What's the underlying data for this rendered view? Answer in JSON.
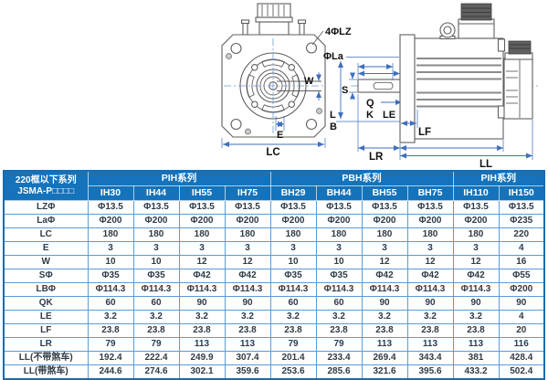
{
  "drawing": {
    "labels": {
      "four_lz": "4ΦLZ",
      "la": "ΦLa",
      "w": "W",
      "e": "E",
      "lc": "LC",
      "s": "S",
      "q": "Q",
      "k": "K",
      "l": "L",
      "b": "B",
      "le": "LE",
      "lf": "LF",
      "lr": "LR",
      "ll": "LL"
    },
    "colors": {
      "outline": "#5f5f5f",
      "dimension": "#3f6fbe",
      "connector_dark": "#606060"
    }
  },
  "table": {
    "corner_header": {
      "line1": "220框以下系列",
      "line2": "JSMA-P□□□□"
    },
    "groups": [
      {
        "label": "PIH系列",
        "span": 4
      },
      {
        "label": "PBH系列",
        "span": 4
      },
      {
        "label": "PIH系列",
        "span": 2
      }
    ],
    "models": [
      "IH30",
      "IH44",
      "IH55",
      "IH75",
      "BH29",
      "BH44",
      "BH55",
      "BH75",
      "IH110",
      "IH150"
    ],
    "rows": [
      {
        "label": "LZΦ",
        "values": [
          "Φ13.5",
          "Φ13.5",
          "Φ13.5",
          "Φ13.5",
          "Φ13.5",
          "Φ13.5",
          "Φ13.5",
          "Φ13.5",
          "Φ13.5",
          "Φ13.5"
        ]
      },
      {
        "label": "LaΦ",
        "values": [
          "Φ200",
          "Φ200",
          "Φ200",
          "Φ200",
          "Φ200",
          "Φ200",
          "Φ200",
          "Φ200",
          "Φ200",
          "Φ235"
        ]
      },
      {
        "label": "LC",
        "values": [
          "180",
          "180",
          "180",
          "180",
          "180",
          "180",
          "180",
          "180",
          "180",
          "220"
        ]
      },
      {
        "label": "E",
        "values": [
          "3",
          "3",
          "3",
          "3",
          "3",
          "3",
          "3",
          "3",
          "3",
          "4"
        ]
      },
      {
        "label": "W",
        "values": [
          "10",
          "10",
          "12",
          "12",
          "10",
          "10",
          "12",
          "12",
          "12",
          "16"
        ]
      },
      {
        "label": "SΦ",
        "values": [
          "Φ35",
          "Φ35",
          "Φ42",
          "Φ42",
          "Φ35",
          "Φ35",
          "Φ42",
          "Φ42",
          "Φ42",
          "Φ55"
        ]
      },
      {
        "label": "LBΦ",
        "values": [
          "Φ114.3",
          "Φ114.3",
          "Φ114.3",
          "Φ114.3",
          "Φ114.3",
          "Φ114.3",
          "Φ114.3",
          "Φ114.3",
          "Φ114.3",
          "Φ200"
        ]
      },
      {
        "label": "QK",
        "values": [
          "60",
          "60",
          "90",
          "90",
          "60",
          "60",
          "90",
          "90",
          "90",
          "90"
        ]
      },
      {
        "label": "LE",
        "values": [
          "3.2",
          "3.2",
          "3.2",
          "3.2",
          "3.2",
          "3.2",
          "3.2",
          "3.2",
          "3.2",
          "4"
        ]
      },
      {
        "label": "LF",
        "values": [
          "23.8",
          "23.8",
          "23.8",
          "23.8",
          "23.8",
          "23.8",
          "23.8",
          "23.8",
          "23.8",
          "20"
        ]
      },
      {
        "label": "LR",
        "values": [
          "79",
          "79",
          "113",
          "113",
          "79",
          "79",
          "113",
          "113",
          "113",
          "116"
        ]
      },
      {
        "label": "LL(不带煞车)",
        "values": [
          "192.4",
          "222.4",
          "249.9",
          "307.4",
          "201.4",
          "233.4",
          "269.4",
          "343.4",
          "381",
          "428.4"
        ]
      },
      {
        "label": "LL(带煞车)",
        "values": [
          "244.6",
          "274.6",
          "302.1",
          "359.6",
          "253.6",
          "285.6",
          "321.6",
          "395.6",
          "433.2",
          "502.4"
        ]
      }
    ],
    "colors": {
      "header_bg": "#1473bb",
      "header_text": "#ffffff",
      "border": "#5b9bd5",
      "outer_border": "#1a6cb0",
      "body_text": "#2e3b47"
    }
  }
}
